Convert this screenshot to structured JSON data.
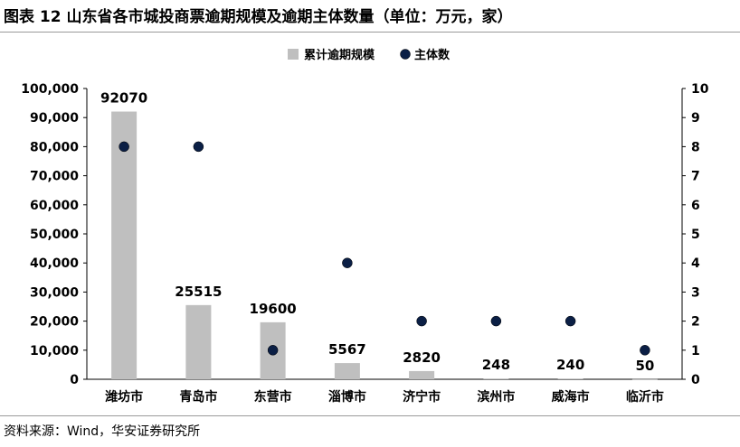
{
  "title": "图表 12 山东省各市城投商票逾期规模及逾期主体数量（单位：万元，家）",
  "source": "资料来源：Wind，华安证券研究所",
  "chart_data": {
    "type": "bar",
    "categories": [
      "潍坊市",
      "青岛市",
      "东营市",
      "淄博市",
      "济宁市",
      "滨州市",
      "威海市",
      "临沂市"
    ],
    "series": [
      {
        "name": "累计逾期规模",
        "type": "bar",
        "axis": "left",
        "values": [
          92070,
          25515,
          19600,
          5567,
          2820,
          248,
          240,
          50
        ],
        "labels": [
          "92070",
          "25515",
          "19600",
          "5567",
          "2820",
          "248",
          "240",
          "50"
        ],
        "color": "#bfbfbf"
      },
      {
        "name": "主体数",
        "type": "scatter",
        "axis": "right",
        "values": [
          8,
          8,
          1,
          4,
          2,
          2,
          2,
          1
        ],
        "color": "#0b1f45"
      }
    ],
    "ylim_left": [
      0,
      100000
    ],
    "yticks_left": [
      "0",
      "10,000",
      "20,000",
      "30,000",
      "40,000",
      "50,000",
      "60,000",
      "70,000",
      "80,000",
      "90,000",
      "100,000"
    ],
    "ylim_right": [
      0,
      10
    ],
    "yticks_right": [
      "0",
      "1",
      "2",
      "3",
      "4",
      "5",
      "6",
      "7",
      "8",
      "9",
      "10"
    ],
    "legend_position": "top-center",
    "grid": false
  }
}
